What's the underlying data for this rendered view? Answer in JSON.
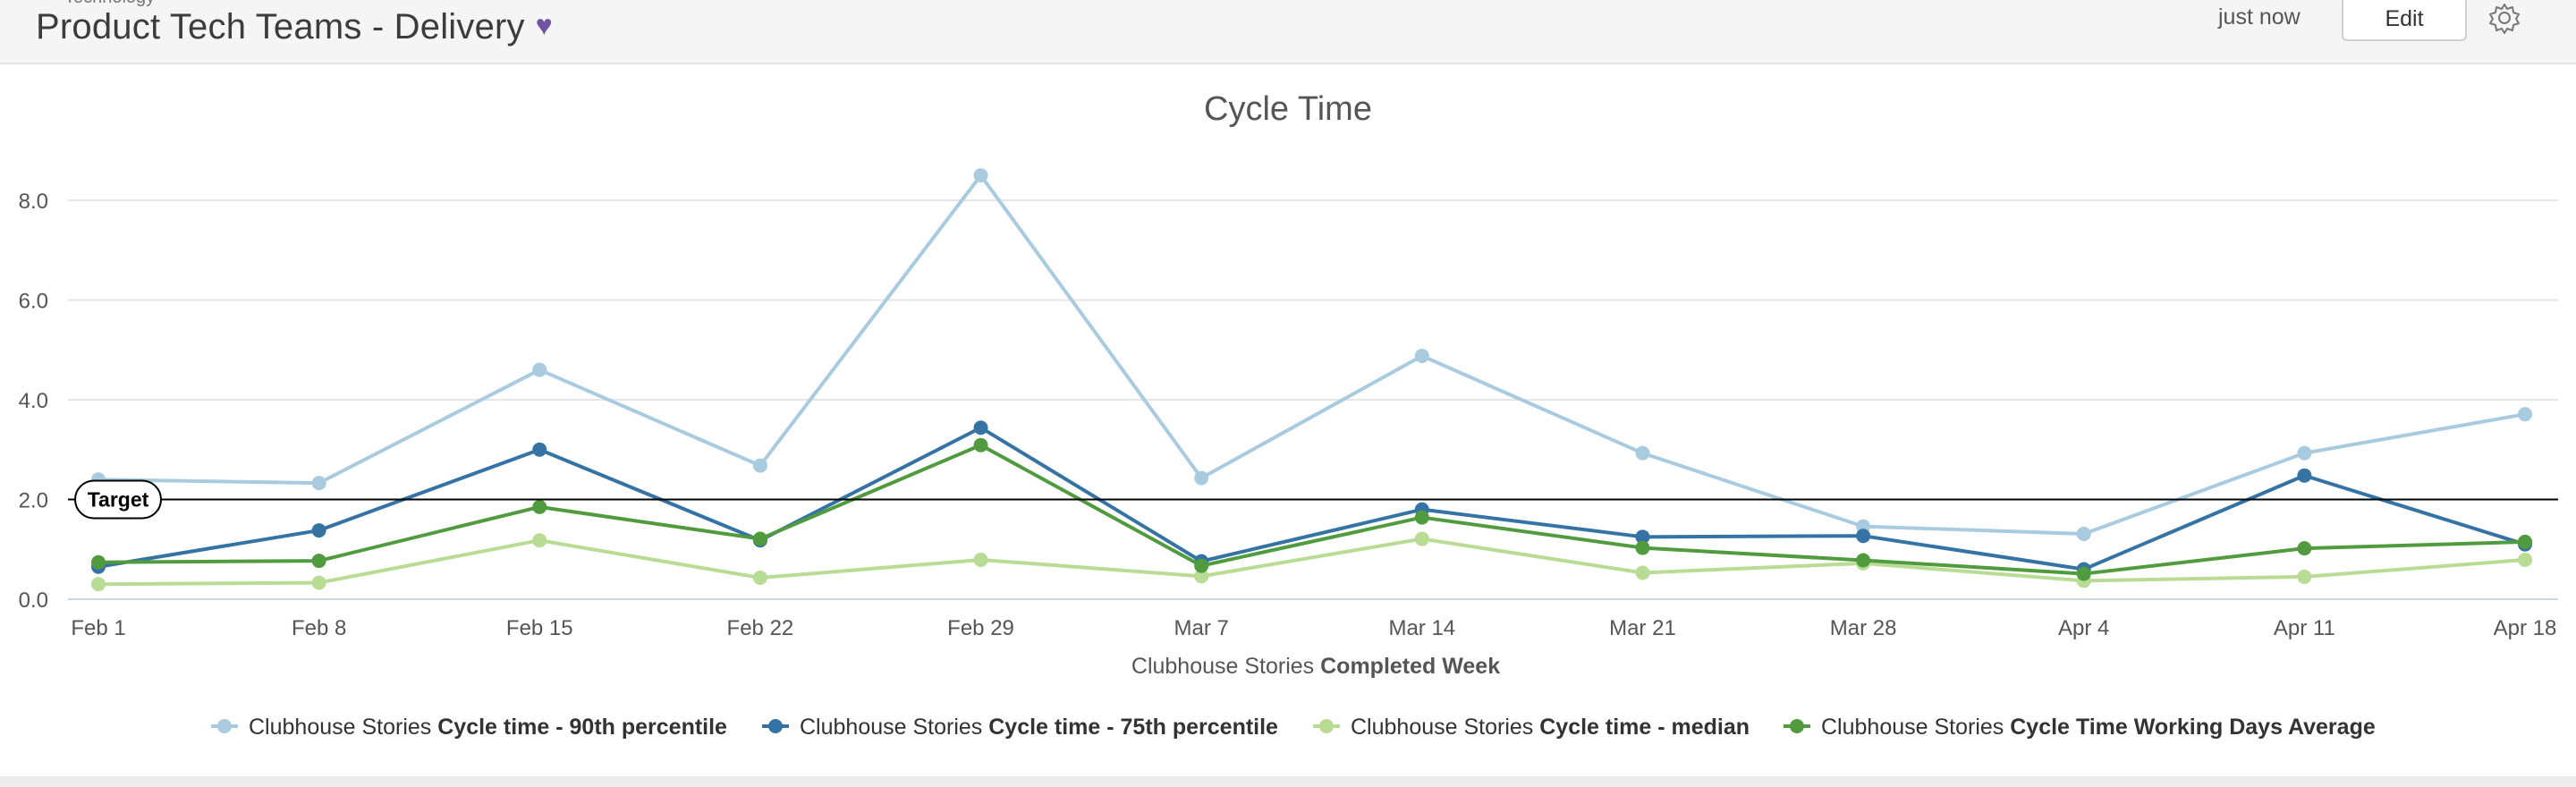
{
  "header": {
    "breadcrumb": "Technology",
    "title": "Product Tech Teams - Delivery",
    "heart_glyph": "♥",
    "updated": "just now",
    "edit_label": "Edit",
    "gear_icon": "gear-icon",
    "accent_color": "#6f55a1"
  },
  "chart_data": {
    "type": "line",
    "title": "Cycle Time",
    "xlabel_prefix": "Clubhouse Stories",
    "xlabel_bold": "Completed Week",
    "ylabel": "",
    "categories": [
      "Feb 1",
      "Feb 8",
      "Feb 15",
      "Feb 22",
      "Feb 29",
      "Mar 7",
      "Mar 14",
      "Mar 21",
      "Mar 28",
      "Apr 4",
      "Apr 11",
      "Apr 18"
    ],
    "ylim": [
      0,
      8.5
    ],
    "yticks": [
      0,
      2,
      4,
      6,
      8
    ],
    "ytick_labels": [
      "0.0",
      "2.0",
      "4.0",
      "6.0",
      "8.0"
    ],
    "grid": true,
    "target": {
      "value": 2.0,
      "label": "Target"
    },
    "legend_position": "bottom-center",
    "series": [
      {
        "prefix": "Clubhouse Stories",
        "name": "Cycle time - 90th percentile",
        "color": "#a9cbe0",
        "values": [
          2.4,
          2.33,
          4.6,
          2.68,
          8.5,
          2.43,
          4.88,
          2.93,
          1.46,
          1.31,
          2.93,
          3.71
        ]
      },
      {
        "prefix": "Clubhouse Stories",
        "name": "Cycle time - 75th percentile",
        "color": "#3573a5",
        "values": [
          0.65,
          1.38,
          3.0,
          1.18,
          3.44,
          0.76,
          1.8,
          1.25,
          1.27,
          0.6,
          2.48,
          1.1
        ]
      },
      {
        "prefix": "Clubhouse Stories",
        "name": "Cycle time - median",
        "color": "#b8dc93",
        "values": [
          0.3,
          0.33,
          1.18,
          0.43,
          0.79,
          0.46,
          1.21,
          0.53,
          0.72,
          0.37,
          0.45,
          0.79
        ]
      },
      {
        "prefix": "Clubhouse Stories",
        "name": "Cycle Time Working Days Average",
        "color": "#519b3f",
        "values": [
          0.74,
          0.77,
          1.85,
          1.21,
          3.09,
          0.67,
          1.64,
          1.03,
          0.78,
          0.51,
          1.02,
          1.15
        ]
      }
    ]
  }
}
